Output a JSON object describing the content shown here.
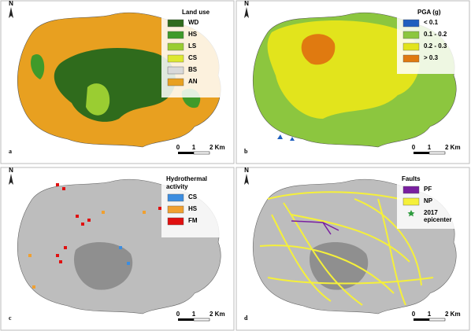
{
  "panels": [
    {
      "letter": "a",
      "north": "N",
      "legend": {
        "title": [
          "Land use"
        ],
        "items": [
          {
            "label": "WD",
            "color": "#2f6b1c"
          },
          {
            "label": "HS",
            "color": "#3f9a2a"
          },
          {
            "label": "LS",
            "color": "#9acd32"
          },
          {
            "label": "CS",
            "color": "#dde830"
          },
          {
            "label": "BS",
            "color": "#d9d9d9"
          },
          {
            "label": "AN",
            "color": "#e8a020"
          }
        ]
      },
      "scale": [
        "0",
        "1",
        "2 Km"
      ]
    },
    {
      "letter": "b",
      "north": "N",
      "legend": {
        "title": [
          "PGA (g)"
        ],
        "items": [
          {
            "label": "< 0.1",
            "color": "#1f5fbf"
          },
          {
            "label": "0.1 - 0.2",
            "color": "#8cc63f"
          },
          {
            "label": "0.2 - 0.3",
            "color": "#e2e41c"
          },
          {
            "label": "> 0.3",
            "color": "#e07a10"
          }
        ]
      },
      "scale": [
        "0",
        "1",
        "2 Km"
      ]
    },
    {
      "letter": "c",
      "north": "N",
      "legend": {
        "title": [
          "Hydrothermal",
          "activity"
        ],
        "items": [
          {
            "label": "CS",
            "color": "#3c8de0"
          },
          {
            "label": "HS",
            "color": "#f0a030"
          },
          {
            "label": "FM",
            "color": "#e01010"
          }
        ]
      },
      "scale": [
        "0",
        "1",
        "2 Km"
      ]
    },
    {
      "letter": "d",
      "north": "N",
      "legend": {
        "title": [
          "Faults"
        ],
        "items": [
          {
            "label": "PF",
            "color": "#7a1fa0"
          },
          {
            "label": "NP",
            "color": "#f5f03a"
          },
          {
            "label": [
              "2017",
              "epicenter"
            ],
            "color": "#2e9b3e",
            "marker": "star"
          }
        ]
      },
      "scale": [
        "0",
        "1",
        "2 Km"
      ]
    }
  ]
}
